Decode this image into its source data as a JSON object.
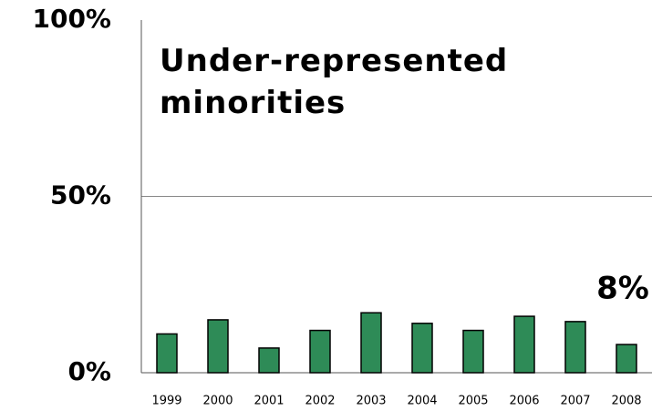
{
  "chart_data": {
    "type": "bar",
    "title": "Under-represented minorities",
    "categories": [
      "1999",
      "2000",
      "2001",
      "2002",
      "2003",
      "2004",
      "2005",
      "2006",
      "2007",
      "2008"
    ],
    "values": [
      11,
      15,
      7,
      12,
      17,
      14,
      12,
      16,
      14.5,
      8
    ],
    "value_labels": [
      null,
      null,
      null,
      null,
      null,
      null,
      null,
      null,
      null,
      "8%"
    ],
    "color": "#2e8b57",
    "ylim": [
      0,
      100
    ],
    "yticks": [
      {
        "value": 0,
        "label": "0%"
      },
      {
        "value": 50,
        "label": "50%"
      },
      {
        "value": 100,
        "label": "100%"
      }
    ],
    "grid": true
  }
}
